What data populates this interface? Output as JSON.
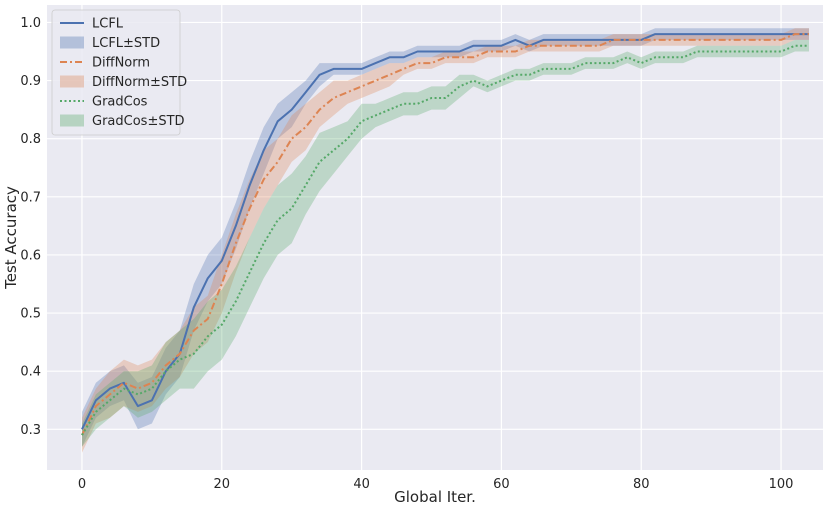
{
  "chart_data": {
    "type": "line",
    "xlabel": "Global Iter.",
    "ylabel": "Test Accuracy",
    "xlim": [
      -5,
      106
    ],
    "ylim": [
      0.23,
      1.03
    ],
    "xticks": [
      0,
      20,
      40,
      60,
      80,
      100
    ],
    "yticks": [
      0.3,
      0.4,
      0.5,
      0.6,
      0.7,
      0.8,
      0.9,
      1.0
    ],
    "xtick_labels": [
      "0",
      "20",
      "40",
      "60",
      "80",
      "100"
    ],
    "ytick_labels": [
      "0.3",
      "0.4",
      "0.5",
      "0.6",
      "0.7",
      "0.8",
      "0.9",
      "1.0"
    ],
    "grid": true,
    "legend_position": "top-left",
    "background": "#eaeaf2",
    "series": [
      {
        "name": "LCFL",
        "band_name": "LCFL±STD",
        "color": "#4c72b0",
        "style": "solid",
        "x": [
          0,
          2,
          4,
          6,
          8,
          10,
          12,
          14,
          16,
          18,
          20,
          22,
          24,
          26,
          28,
          30,
          32,
          34,
          36,
          38,
          40,
          42,
          44,
          46,
          48,
          50,
          52,
          54,
          56,
          58,
          60,
          62,
          64,
          66,
          68,
          70,
          72,
          74,
          76,
          78,
          80,
          82,
          84,
          86,
          88,
          90,
          92,
          94,
          96,
          98,
          100,
          102,
          104
        ],
        "y": [
          0.3,
          0.35,
          0.37,
          0.38,
          0.34,
          0.35,
          0.4,
          0.43,
          0.51,
          0.56,
          0.59,
          0.65,
          0.72,
          0.78,
          0.83,
          0.85,
          0.88,
          0.91,
          0.92,
          0.92,
          0.92,
          0.93,
          0.94,
          0.94,
          0.95,
          0.95,
          0.95,
          0.95,
          0.96,
          0.96,
          0.96,
          0.97,
          0.96,
          0.97,
          0.97,
          0.97,
          0.97,
          0.97,
          0.97,
          0.97,
          0.97,
          0.98,
          0.98,
          0.98,
          0.98,
          0.98,
          0.98,
          0.98,
          0.98,
          0.98,
          0.98,
          0.98,
          0.98
        ],
        "std": [
          0.03,
          0.03,
          0.03,
          0.03,
          0.04,
          0.04,
          0.04,
          0.04,
          0.04,
          0.04,
          0.04,
          0.04,
          0.04,
          0.04,
          0.03,
          0.03,
          0.02,
          0.02,
          0.01,
          0.01,
          0.01,
          0.01,
          0.01,
          0.01,
          0.01,
          0.01,
          0.01,
          0.01,
          0.01,
          0.01,
          0.01,
          0.01,
          0.01,
          0.01,
          0.01,
          0.01,
          0.01,
          0.01,
          0.01,
          0.01,
          0.01,
          0.01,
          0.01,
          0.01,
          0.01,
          0.01,
          0.01,
          0.01,
          0.01,
          0.01,
          0.01,
          0.01,
          0.01
        ]
      },
      {
        "name": "DiffNorm",
        "band_name": "DiffNorm±STD",
        "color": "#dd8452",
        "style": "dashdot",
        "x": [
          0,
          2,
          4,
          6,
          8,
          10,
          12,
          14,
          16,
          18,
          20,
          22,
          24,
          26,
          28,
          30,
          32,
          34,
          36,
          38,
          40,
          42,
          44,
          46,
          48,
          50,
          52,
          54,
          56,
          58,
          60,
          62,
          64,
          66,
          68,
          70,
          72,
          74,
          76,
          78,
          80,
          82,
          84,
          86,
          88,
          90,
          92,
          94,
          96,
          98,
          100,
          102,
          104
        ],
        "y": [
          0.29,
          0.34,
          0.36,
          0.38,
          0.37,
          0.38,
          0.41,
          0.43,
          0.47,
          0.49,
          0.55,
          0.62,
          0.68,
          0.73,
          0.76,
          0.8,
          0.82,
          0.85,
          0.87,
          0.88,
          0.89,
          0.9,
          0.91,
          0.92,
          0.93,
          0.93,
          0.94,
          0.94,
          0.94,
          0.95,
          0.95,
          0.95,
          0.96,
          0.96,
          0.96,
          0.96,
          0.96,
          0.96,
          0.97,
          0.97,
          0.97,
          0.97,
          0.97,
          0.97,
          0.97,
          0.97,
          0.97,
          0.97,
          0.97,
          0.97,
          0.97,
          0.98,
          0.98
        ],
        "std": [
          0.03,
          0.03,
          0.04,
          0.04,
          0.04,
          0.04,
          0.04,
          0.04,
          0.04,
          0.04,
          0.05,
          0.05,
          0.05,
          0.05,
          0.04,
          0.04,
          0.04,
          0.03,
          0.03,
          0.02,
          0.02,
          0.02,
          0.02,
          0.01,
          0.01,
          0.01,
          0.01,
          0.01,
          0.01,
          0.01,
          0.01,
          0.01,
          0.01,
          0.01,
          0.01,
          0.01,
          0.01,
          0.01,
          0.01,
          0.01,
          0.01,
          0.01,
          0.01,
          0.01,
          0.01,
          0.01,
          0.01,
          0.01,
          0.01,
          0.01,
          0.01,
          0.01,
          0.01
        ]
      },
      {
        "name": "GradCos",
        "band_name": "GradCos±STD",
        "color": "#55a868",
        "style": "dotted",
        "x": [
          0,
          2,
          4,
          6,
          8,
          10,
          12,
          14,
          16,
          18,
          20,
          22,
          24,
          26,
          28,
          30,
          32,
          34,
          36,
          38,
          40,
          42,
          44,
          46,
          48,
          50,
          52,
          54,
          56,
          58,
          60,
          62,
          64,
          66,
          68,
          70,
          72,
          74,
          76,
          78,
          80,
          82,
          84,
          86,
          88,
          90,
          92,
          94,
          96,
          98,
          100,
          102,
          104
        ],
        "y": [
          0.29,
          0.33,
          0.35,
          0.37,
          0.36,
          0.37,
          0.4,
          0.42,
          0.43,
          0.46,
          0.48,
          0.52,
          0.57,
          0.62,
          0.66,
          0.68,
          0.72,
          0.76,
          0.78,
          0.8,
          0.83,
          0.84,
          0.85,
          0.86,
          0.86,
          0.87,
          0.87,
          0.89,
          0.9,
          0.89,
          0.9,
          0.91,
          0.91,
          0.92,
          0.92,
          0.92,
          0.93,
          0.93,
          0.93,
          0.94,
          0.93,
          0.94,
          0.94,
          0.94,
          0.95,
          0.95,
          0.95,
          0.95,
          0.95,
          0.95,
          0.95,
          0.96,
          0.96
        ],
        "std": [
          0.02,
          0.03,
          0.03,
          0.03,
          0.04,
          0.04,
          0.05,
          0.05,
          0.06,
          0.06,
          0.06,
          0.06,
          0.06,
          0.06,
          0.06,
          0.06,
          0.05,
          0.05,
          0.04,
          0.03,
          0.03,
          0.02,
          0.02,
          0.02,
          0.02,
          0.02,
          0.02,
          0.02,
          0.01,
          0.01,
          0.01,
          0.01,
          0.01,
          0.01,
          0.01,
          0.01,
          0.01,
          0.01,
          0.01,
          0.01,
          0.01,
          0.01,
          0.01,
          0.01,
          0.01,
          0.01,
          0.01,
          0.01,
          0.01,
          0.01,
          0.01,
          0.01,
          0.01
        ]
      }
    ]
  }
}
